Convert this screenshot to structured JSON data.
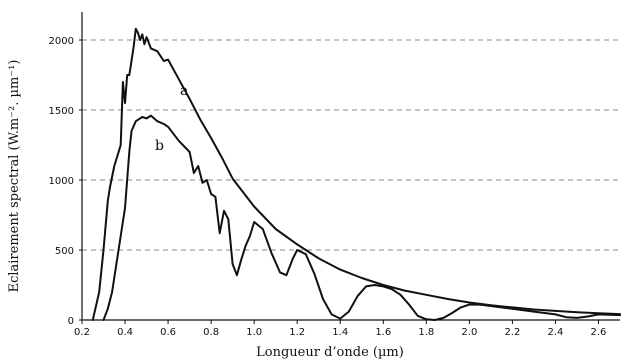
{
  "chart_data": {
    "type": "line",
    "title": "",
    "xlabel": "Longueur d’onde (µm)",
    "ylabel": "Eclairement spectral (W.m⁻². µm⁻¹)",
    "xlim": [
      0.2,
      2.7
    ],
    "ylim": [
      0,
      2200
    ],
    "xticks": [
      0.2,
      0.4,
      0.6,
      0.8,
      1.0,
      1.2,
      1.4,
      1.6,
      1.8,
      2.0,
      2.2,
      2.4,
      2.6
    ],
    "xtick_labels": [
      "0.2",
      "0.4",
      "0.6",
      "0.8",
      "1.0",
      "1.2",
      "1.4",
      "1.6",
      "1.8",
      "2.0",
      "2.2",
      "2.4",
      "2.6"
    ],
    "yticks": [
      0,
      500,
      1000,
      1500,
      2000
    ],
    "ytick_labels": [
      "0",
      "500",
      "1000",
      "1500",
      "2000"
    ],
    "grid": "horizontal dashed",
    "series": [
      {
        "name": "a",
        "x": [
          0.25,
          0.28,
          0.3,
          0.32,
          0.33,
          0.35,
          0.37,
          0.38,
          0.39,
          0.4,
          0.41,
          0.42,
          0.43,
          0.44,
          0.45,
          0.46,
          0.47,
          0.48,
          0.49,
          0.5,
          0.52,
          0.55,
          0.58,
          0.6,
          0.65,
          0.7,
          0.75,
          0.8,
          0.85,
          0.9,
          1.0,
          1.1,
          1.2,
          1.3,
          1.4,
          1.5,
          1.6,
          1.7,
          1.8,
          1.9,
          2.0,
          2.1,
          2.2,
          2.3,
          2.4,
          2.5,
          2.6,
          2.7
        ],
        "y": [
          0,
          200,
          500,
          850,
          950,
          1100,
          1200,
          1250,
          1700,
          1550,
          1750,
          1750,
          1850,
          1950,
          2080,
          2050,
          2000,
          2040,
          1970,
          2020,
          1940,
          1920,
          1850,
          1860,
          1720,
          1580,
          1430,
          1300,
          1160,
          1010,
          810,
          650,
          540,
          440,
          360,
          300,
          250,
          210,
          180,
          150,
          125,
          105,
          90,
          75,
          65,
          55,
          48,
          42
        ]
      },
      {
        "name": "b",
        "x": [
          0.3,
          0.32,
          0.34,
          0.36,
          0.38,
          0.4,
          0.42,
          0.43,
          0.45,
          0.48,
          0.5,
          0.52,
          0.55,
          0.58,
          0.6,
          0.65,
          0.7,
          0.72,
          0.74,
          0.76,
          0.78,
          0.8,
          0.82,
          0.84,
          0.86,
          0.88,
          0.9,
          0.92,
          0.94,
          0.96,
          0.98,
          1.0,
          1.04,
          1.08,
          1.12,
          1.15,
          1.18,
          1.2,
          1.24,
          1.28,
          1.32,
          1.36,
          1.4,
          1.44,
          1.48,
          1.52,
          1.56,
          1.6,
          1.64,
          1.68,
          1.72,
          1.76,
          1.8,
          1.84,
          1.88,
          1.92,
          1.96,
          2.0,
          2.05,
          2.1,
          2.2,
          2.3,
          2.4,
          2.45,
          2.5,
          2.55,
          2.6,
          2.7
        ],
        "y": [
          0,
          80,
          200,
          400,
          600,
          800,
          1200,
          1350,
          1420,
          1450,
          1440,
          1460,
          1420,
          1400,
          1380,
          1280,
          1200,
          1050,
          1100,
          980,
          1000,
          900,
          880,
          620,
          780,
          720,
          400,
          320,
          430,
          530,
          600,
          700,
          650,
          480,
          340,
          320,
          440,
          500,
          470,
          330,
          150,
          40,
          10,
          60,
          170,
          240,
          250,
          240,
          220,
          180,
          110,
          30,
          5,
          0,
          15,
          50,
          90,
          110,
          110,
          100,
          80,
          60,
          40,
          20,
          15,
          25,
          40,
          35
        ]
      }
    ]
  }
}
